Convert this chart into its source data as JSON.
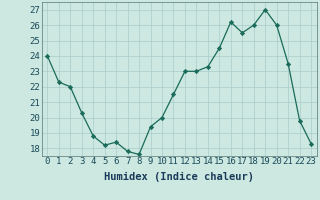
{
  "x": [
    0,
    1,
    2,
    3,
    4,
    5,
    6,
    7,
    8,
    9,
    10,
    11,
    12,
    13,
    14,
    15,
    16,
    17,
    18,
    19,
    20,
    21,
    22,
    23
  ],
  "y": [
    24.0,
    22.3,
    22.0,
    20.3,
    18.8,
    18.2,
    18.4,
    17.8,
    17.6,
    19.4,
    20.0,
    21.5,
    23.0,
    23.0,
    23.3,
    24.5,
    26.2,
    25.5,
    26.0,
    27.0,
    26.0,
    23.5,
    19.8,
    18.3
  ],
  "xlabel": "Humidex (Indice chaleur)",
  "ylim": [
    17.5,
    27.5
  ],
  "yticks": [
    18,
    19,
    20,
    21,
    22,
    23,
    24,
    25,
    26,
    27
  ],
  "xticks": [
    0,
    1,
    2,
    3,
    4,
    5,
    6,
    7,
    8,
    9,
    10,
    11,
    12,
    13,
    14,
    15,
    16,
    17,
    18,
    19,
    20,
    21,
    22,
    23
  ],
  "line_color": "#1a6b5a",
  "marker": "D",
  "marker_size": 2.2,
  "bg_color": "#cce8e0",
  "grid_color": "#aacccc",
  "xlabel_fontsize": 7.5,
  "tick_fontsize": 6.5,
  "tick_color": "#1a4a5a",
  "xlabel_color": "#1a3a5a"
}
